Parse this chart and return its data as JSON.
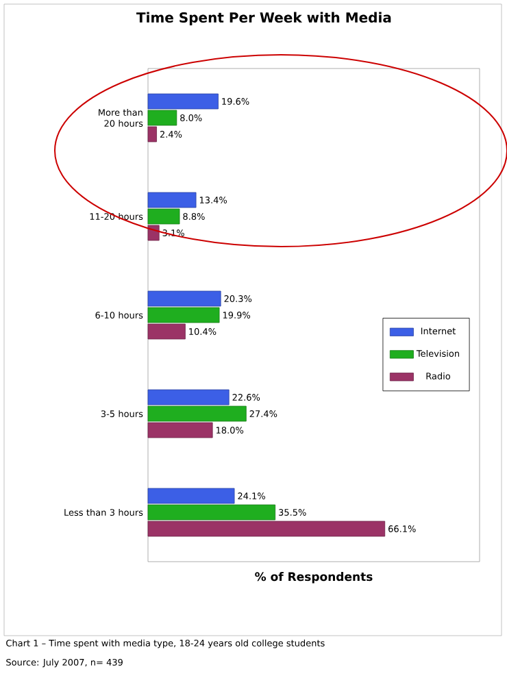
{
  "chart_data": {
    "type": "bar",
    "orientation": "horizontal",
    "title": "Time Spent Per Week with Media",
    "xlabel": "% of Respondents",
    "categories": [
      "More than 20 hours",
      "11-20 hours",
      "6-10 hours",
      "3-5 hours",
      "Less than 3 hours"
    ],
    "series": [
      {
        "name": "Internet",
        "color": "#3c5fe6",
        "values": [
          19.6,
          13.4,
          20.3,
          22.6,
          24.1
        ],
        "value_labels": [
          "19.6%",
          "13.4%",
          "20.3%",
          "22.6%",
          "24.1%"
        ]
      },
      {
        "name": "Television",
        "color": "#1fae1f",
        "values": [
          8.0,
          8.8,
          19.9,
          27.4,
          35.5
        ],
        "value_labels": [
          "8.0%",
          "8.8%",
          "19.9%",
          "27.4%",
          "35.5%"
        ]
      },
      {
        "name": "Radio",
        "color": "#9b3366",
        "values": [
          2.4,
          3.1,
          10.4,
          18.0,
          66.1
        ],
        "value_labels": [
          "2.4%",
          "3.1%",
          "10.4%",
          "18.0%",
          "66.1%"
        ]
      }
    ],
    "legend": "right",
    "tick_labels": "y",
    "annotations": [
      "Chart 1 – Time spent with media type, 18-24 years old college students",
      "Source: July 2007, n= 439"
    ]
  }
}
